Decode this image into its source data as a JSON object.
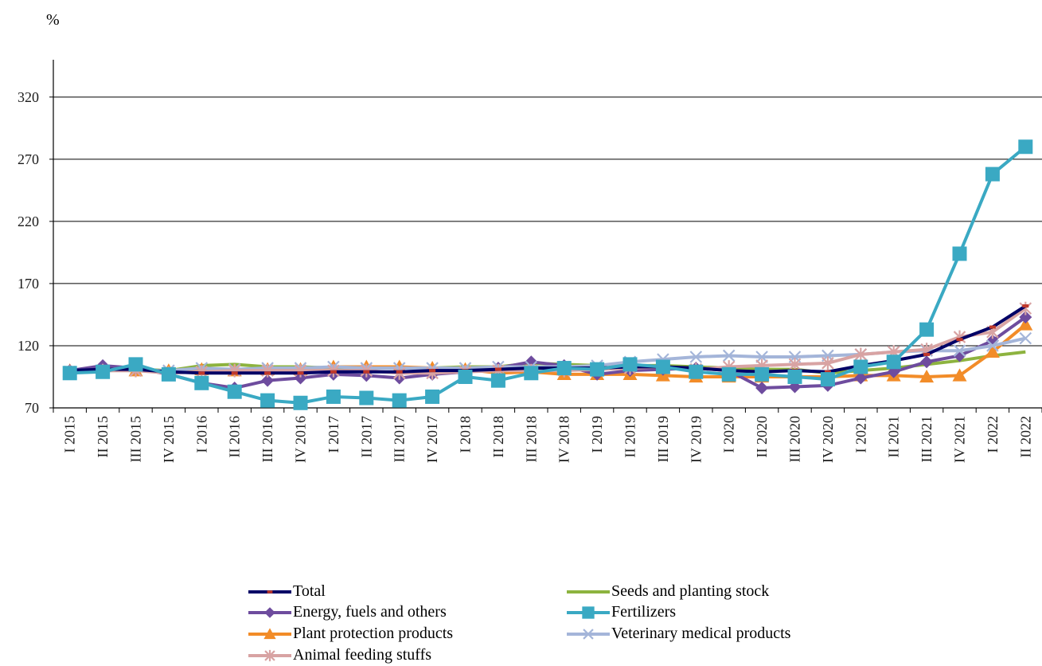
{
  "chart_data": {
    "type": "line",
    "ylabel": "%",
    "ylim": [
      70,
      350
    ],
    "yticks": [
      70,
      120,
      170,
      220,
      270,
      320
    ],
    "grid": "horizontal",
    "legend_position": "bottom",
    "categories": [
      "I 2015",
      "II 2015",
      "III 2015",
      "IV 2015",
      "I 2016",
      "II 2016",
      "III 2016",
      "IV 2016",
      "I 2017",
      "II 2017",
      "III 2017",
      "IV 2017",
      "I 2018",
      "II 2018",
      "III 2018",
      "IV 2018",
      "I 2019",
      "II 2019",
      "III 2019",
      "IV 2019",
      "I 2020",
      "II 2020",
      "III 2020",
      "IV 2020",
      "I 2021",
      "II 2021",
      "III 2021",
      "IV 2021",
      "I 2022",
      "II 2022"
    ],
    "series": [
      {
        "name": "Total",
        "color": "#000066",
        "marker": "dash",
        "values": [
          100,
          101,
          101,
          99,
          98,
          98,
          98,
          98,
          99,
          99,
          99,
          100,
          100,
          101,
          102,
          102,
          102,
          103,
          103,
          102,
          100,
          99,
          100,
          99,
          104,
          108,
          113,
          125,
          135,
          152
        ]
      },
      {
        "name": "Seeds and planting stock",
        "color": "#8db33f",
        "marker": "none",
        "values": [
          100,
          101,
          101,
          100,
          104,
          105,
          103,
          103,
          102,
          102,
          102,
          102,
          103,
          103,
          106,
          105,
          104,
          104,
          104,
          103,
          102,
          101,
          101,
          98,
          100,
          102,
          105,
          108,
          112,
          115
        ]
      },
      {
        "name": "Energy, fuels and others",
        "color": "#6e4c9e",
        "marker": "diamond",
        "values": [
          100,
          104,
          102,
          97,
          90,
          86,
          92,
          94,
          97,
          96,
          94,
          97,
          99,
          102,
          107,
          104,
          97,
          100,
          101,
          102,
          100,
          86,
          87,
          88,
          94,
          99,
          107,
          112,
          124,
          143
        ]
      },
      {
        "name": "Fertilizers",
        "color": "#3aa9c3",
        "marker": "square",
        "values": [
          98,
          99,
          105,
          97,
          90,
          83,
          76,
          74,
          79,
          78,
          76,
          79,
          95,
          92,
          98,
          102,
          101,
          105,
          103,
          99,
          97,
          97,
          95,
          93,
          103,
          107,
          133,
          194,
          258,
          280
        ]
      },
      {
        "name": "Plant protection products",
        "color": "#f28c28",
        "marker": "triangle",
        "values": [
          100,
          100,
          100,
          100,
          101,
          100,
          101,
          101,
          103,
          103,
          103,
          102,
          101,
          98,
          99,
          97,
          97,
          97,
          96,
          95,
          95,
          95,
          95,
          95,
          96,
          96,
          95,
          96,
          115,
          137
        ]
      },
      {
        "name": "Veterinary medical products",
        "color": "#a4b5d9",
        "marker": "x",
        "values": [
          99,
          100,
          100,
          100,
          102,
          101,
          102,
          102,
          103,
          102,
          102,
          102,
          102,
          103,
          103,
          103,
          104,
          107,
          109,
          111,
          112,
          111,
          111,
          112,
          113,
          115,
          116,
          116,
          120,
          126
        ]
      },
      {
        "name": "Animal feeding stuffs",
        "color": "#d8a3a3",
        "marker": "star",
        "values": [
          99,
          100,
          100,
          98,
          99,
          100,
          100,
          100,
          100,
          100,
          98,
          98,
          99,
          100,
          100,
          100,
          101,
          102,
          103,
          101,
          103,
          104,
          105,
          106,
          113,
          115,
          117,
          127,
          131,
          150
        ]
      }
    ]
  }
}
